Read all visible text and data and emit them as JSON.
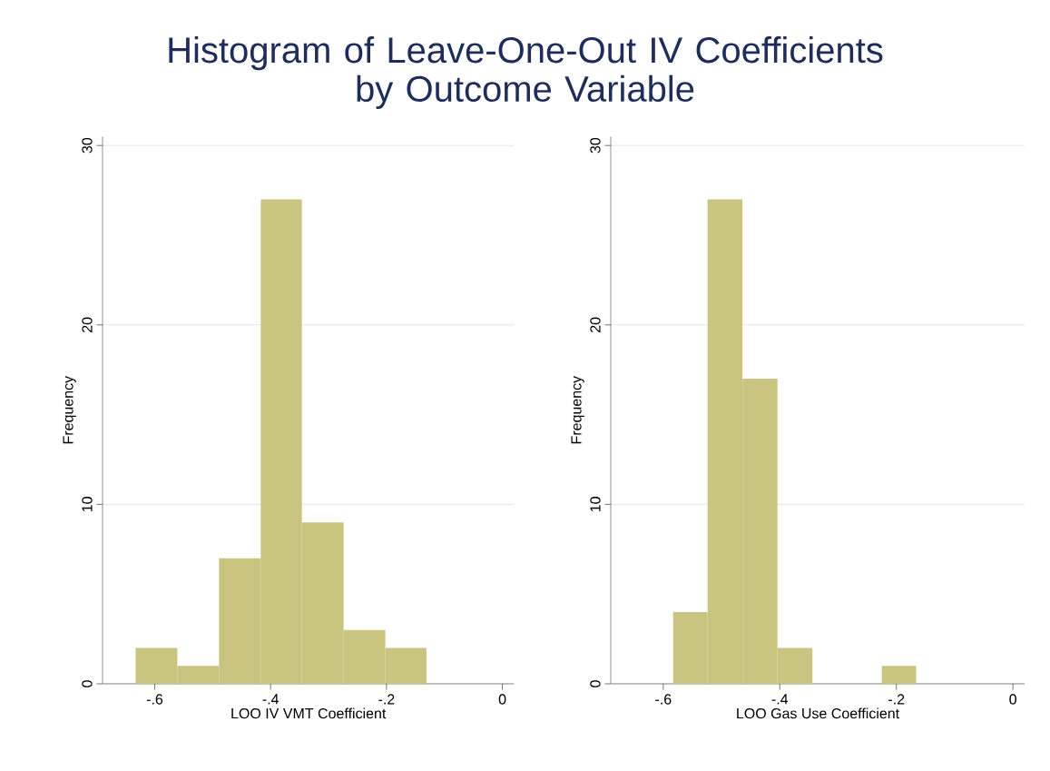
{
  "chart_data": [
    {
      "type": "histogram",
      "title": "Histogram of Leave-One-Out IV Coefficients\nby  Outcome Variable",
      "xlabel": "LOO IV VMT Coefficient",
      "ylabel": "Frequency",
      "bins": [
        -0.633,
        -0.561,
        -0.489,
        -0.417,
        -0.346,
        -0.274,
        -0.202,
        -0.131
      ],
      "values": [
        2,
        1,
        7,
        27,
        9,
        3,
        2
      ],
      "color": "#c9c47f",
      "xlim": [
        -0.69,
        0.02
      ],
      "ylim": [
        0,
        30.5
      ],
      "xticks": [
        {
          "value": -0.6,
          "label": "-.6"
        },
        {
          "value": -0.4,
          "label": "-.4"
        },
        {
          "value": -0.2,
          "label": "-.2"
        },
        0
      ],
      "yticks": [
        0,
        10,
        20,
        30
      ],
      "grid": "y"
    },
    {
      "type": "histogram",
      "xlabel": "LOO Gas Use Coefficient",
      "ylabel": "Frequency",
      "bins": [
        -0.583,
        -0.524,
        -0.464,
        -0.404,
        -0.344,
        -0.225,
        -0.166
      ],
      "values": [
        4,
        27,
        17,
        2,
        0,
        1
      ],
      "color": "#c9c47f",
      "xlim": [
        -0.69,
        0.02
      ],
      "ylim": [
        0,
        30.5
      ],
      "xticks": [
        {
          "value": -0.6,
          "label": "-.6"
        },
        {
          "value": -0.4,
          "label": "-.4"
        },
        {
          "value": -0.2,
          "label": "-.2"
        },
        0
      ],
      "yticks": [
        0,
        10,
        20,
        30
      ],
      "grid": "y"
    }
  ]
}
